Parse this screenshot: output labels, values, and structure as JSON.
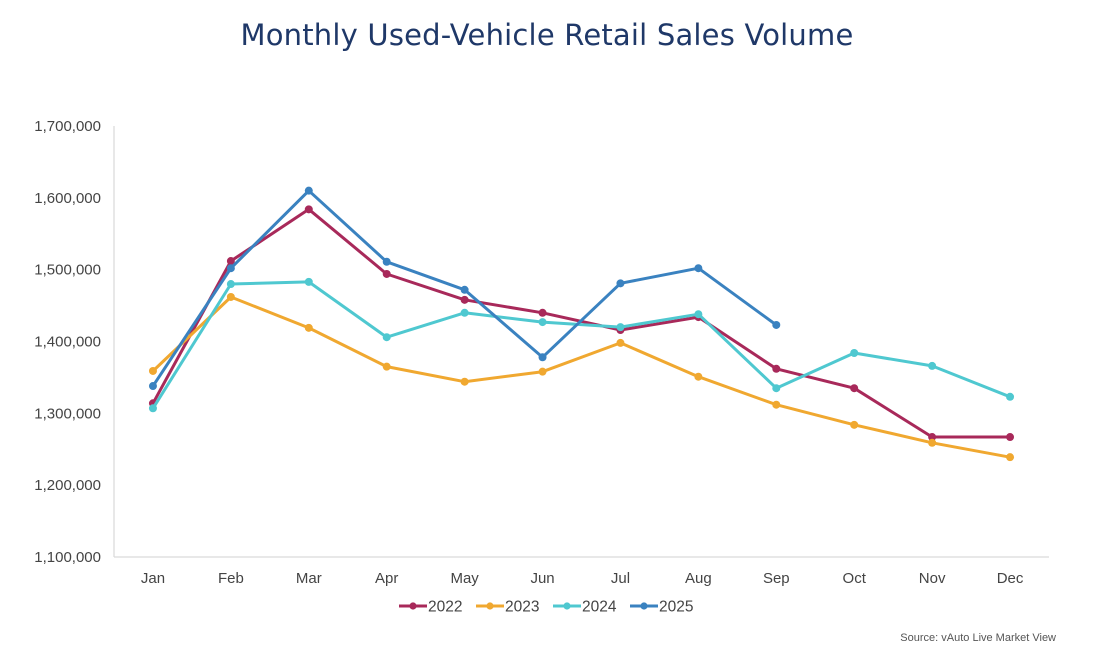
{
  "chart_data": {
    "type": "line",
    "title": "Monthly Used-Vehicle Retail Sales Volume",
    "xlabel": "",
    "ylabel": "",
    "categories": [
      "Jan",
      "Feb",
      "Mar",
      "Apr",
      "May",
      "Jun",
      "Jul",
      "Aug",
      "Sep",
      "Oct",
      "Nov",
      "Dec"
    ],
    "ylim": [
      1100000,
      1700000
    ],
    "yticks": [
      1100000,
      1200000,
      1300000,
      1400000,
      1500000,
      1600000,
      1700000
    ],
    "ytick_labels": [
      "1,100,000",
      "1,200,000",
      "1,300,000",
      "1,400,000",
      "1,500,000",
      "1,600,000",
      "1,700,000"
    ],
    "grid": false,
    "legend_position": "bottom",
    "series": [
      {
        "name": "2022",
        "color": "#a8295a",
        "values": [
          1314000,
          1512000,
          1584000,
          1494000,
          1458000,
          1440000,
          1416000,
          1434000,
          1362000,
          1335000,
          1267000,
          1267000
        ]
      },
      {
        "name": "2023",
        "color": "#f0a830",
        "values": [
          1359000,
          1462000,
          1419000,
          1365000,
          1344000,
          1358000,
          1398000,
          1351000,
          1312000,
          1284000,
          1259000,
          1239000
        ]
      },
      {
        "name": "2024",
        "color": "#4fc8d0",
        "values": [
          1307000,
          1480000,
          1483000,
          1406000,
          1440000,
          1427000,
          1420000,
          1438000,
          1335000,
          1384000,
          1366000,
          1323000
        ]
      },
      {
        "name": "2025",
        "color": "#3a82c0",
        "values": [
          1338000,
          1502000,
          1610000,
          1511000,
          1472000,
          1378000,
          1481000,
          1502000,
          1423000,
          null,
          null,
          null
        ]
      }
    ],
    "source": "Source: vAuto Live Market View"
  }
}
